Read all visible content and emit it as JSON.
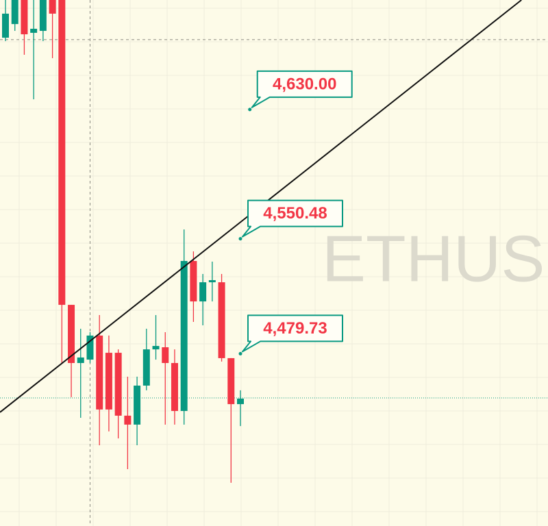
{
  "chart_data": {
    "type": "candlestick",
    "watermark": "ETHUS",
    "ylim": [
      4373.7,
      4697.4
    ],
    "up_color": "#089981",
    "down_color": "#f23645",
    "candles": {
      "open": [
        4674.2,
        4682.6,
        4697.4,
        4677.2,
        4678.4,
        4697.4,
        4697.4,
        4509.8,
        4474.0,
        4476.1,
        4490.9,
        4480.3,
        4480.3,
        4441.6,
        4436.1,
        4460.1,
        4482.4,
        4483.7,
        4474.0,
        4444.5,
        4536.8,
        4511.9,
        4523.7,
        4523.7,
        4477.0,
        4448.7
      ],
      "high": [
        4701.6,
        4701.6,
        4701.6,
        4697.4,
        4701.6,
        4701.6,
        4701.6,
        4509.8,
        4495.1,
        4493.0,
        4503.5,
        4490.9,
        4482.4,
        4465.6,
        4465.6,
        4495.1,
        4503.5,
        4493.0,
        4482.4,
        4556.2,
        4542.7,
        4528.8,
        4536.4,
        4528.8,
        4477.0,
        4457.2
      ],
      "low": [
        4672.1,
        4678.4,
        4663.7,
        4636.3,
        4672.1,
        4661.6,
        4474.0,
        4453.0,
        4440.3,
        4474.0,
        4423.4,
        4431.9,
        4427.6,
        4408.7,
        4423.4,
        4457.2,
        4476.1,
        4436.1,
        4436.1,
        4436.1,
        4499.3,
        4497.2,
        4511.9,
        4474.9,
        4400.3,
        4435.2
      ],
      "close": [
        4689.0,
        4697.4,
        4676.3,
        4679.7,
        4697.4,
        4689.0,
        4509.8,
        4474.0,
        4477.4,
        4490.9,
        4445.4,
        4445.4,
        4441.6,
        4436.1,
        4460.1,
        4482.4,
        4484.5,
        4474.0,
        4444.5,
        4536.8,
        4511.9,
        4523.7,
        4525.0,
        4477.0,
        4448.7,
        4452.1
      ]
    },
    "trend_line": {
      "x": [
        -0.58,
        54.9
      ],
      "y": [
        4443.7,
        4697.4
      ],
      "color": "#111111"
    },
    "last_price": 4452.5,
    "crosshair": {
      "x": 9,
      "y": 4673.0
    },
    "annotations": [
      {
        "x": 26,
        "value": 4630,
        "label": "4,630.00"
      },
      {
        "x": 25,
        "value": 4550.48,
        "label": "4,550.48"
      },
      {
        "x": 25,
        "value": 4479.73,
        "label": "4,479.73"
      }
    ]
  }
}
